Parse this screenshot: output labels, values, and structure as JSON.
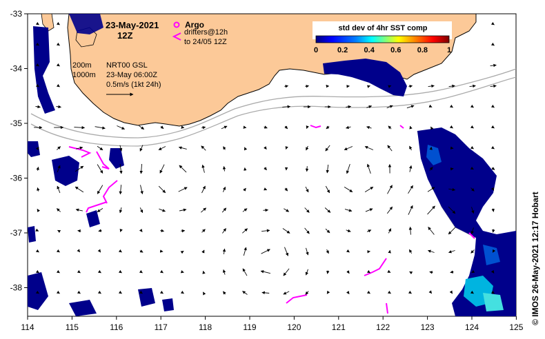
{
  "header": {
    "date": "23-May-2021",
    "time": "12Z"
  },
  "legend_argo": {
    "argo_label": "Argo",
    "drifters_line1": "drifters@12h",
    "drifters_line2": "to 24/05 12Z"
  },
  "isobaths": {
    "depth1": "200m",
    "depth2": "1000m"
  },
  "model": {
    "name": "NRT00 GSL",
    "time": "23-May 06:00Z",
    "scale": "0.5m/s (1kt 24h)"
  },
  "colorbar": {
    "title": "std dev of 4hr SST comp",
    "ticks": [
      "0",
      "0.2",
      "0.4",
      "0.6",
      "0.8",
      "1"
    ],
    "colors": [
      "#00007f",
      "#0000ff",
      "#007fff",
      "#00ffff",
      "#7fff7f",
      "#ffff00",
      "#ff7f00",
      "#ff0000",
      "#7f0000"
    ]
  },
  "axes": {
    "x_ticks": [
      "114",
      "115",
      "116",
      "117",
      "118",
      "119",
      "120",
      "121",
      "122",
      "123",
      "124",
      "125"
    ],
    "y_ticks": [
      "-33",
      "-34",
      "-35",
      "-36",
      "-37",
      "-38"
    ]
  },
  "credit": "© IMOS 26-May-2021 12:17 Hobart",
  "colors": {
    "land": "#fcc998",
    "sst_patch": "#00008b",
    "drifter": "#ff00ff",
    "isobath": "#aaaaaa"
  }
}
